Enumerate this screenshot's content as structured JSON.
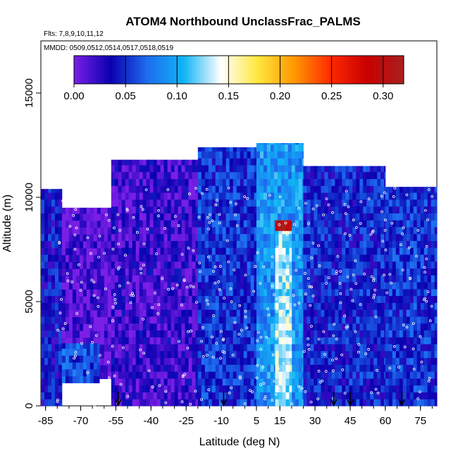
{
  "chart_data": {
    "type": "heatmap",
    "title": "ATOM4 Northbound UnclassFrac_PALMS",
    "flights_text": "Flts: 7,8,9,10,11,12",
    "mmdd_text": "MMDD: 0509,0512,0514,0517,0518,0519",
    "xlabel": "Latitude (deg N)",
    "ylabel": "Altitude (m)",
    "xlim": [
      -87,
      82
    ],
    "ylim": [
      0,
      17500
    ],
    "x_tick_labels": [
      "-85",
      "-70",
      "-55",
      "-40",
      "-25",
      "-10",
      "5",
      "15",
      "30",
      "45",
      "60",
      "75"
    ],
    "x_tick_values": [
      -85,
      -70,
      -55,
      -40,
      -25,
      -10,
      5,
      15,
      30,
      45,
      60,
      75
    ],
    "y_tick_labels": [
      "0",
      "5000",
      "10000",
      "15000"
    ],
    "y_tick_values": [
      0,
      5000,
      10000,
      15000
    ],
    "colorbar": {
      "range": [
        0,
        0.32
      ],
      "tick_labels": [
        "0.00",
        "0.05",
        "0.10",
        "0.15",
        "0.20",
        "0.25",
        "0.30"
      ],
      "tick_values": [
        0,
        0.05,
        0.1,
        0.15,
        0.2,
        0.25,
        0.3
      ],
      "colors": [
        "#7a1fe6",
        "#0a00b0",
        "#1e6cf0",
        "#11b4f5",
        "#ffffff",
        "#ffe840",
        "#ff9900",
        "#ff2a00",
        "#c80000",
        "#a82020"
      ]
    },
    "arrows_latitude": [
      -54,
      -9,
      38,
      45,
      67
    ],
    "regions": [
      {
        "lat": [
          -87,
          -78
        ],
        "alt": [
          0,
          10400
        ],
        "value": 0.04
      },
      {
        "lat": [
          -78,
          -57
        ],
        "alt": [
          1300,
          9500
        ],
        "value": 0.01
      },
      {
        "lat": [
          -78,
          -62
        ],
        "alt": [
          1100,
          3000
        ],
        "value": 0.06
      },
      {
        "lat": [
          -57,
          -20
        ],
        "alt": [
          0,
          11800
        ],
        "value": 0.02
      },
      {
        "lat": [
          -20,
          5
        ],
        "alt": [
          0,
          12400
        ],
        "value": 0.05
      },
      {
        "lat": [
          5,
          25
        ],
        "alt": [
          0,
          12600
        ],
        "value": 0.09
      },
      {
        "lat": [
          13,
          20
        ],
        "alt": [
          0,
          8900
        ],
        "value": 0.13
      },
      {
        "lat": [
          13,
          20
        ],
        "alt": [
          8400,
          8900
        ],
        "value": 0.3
      },
      {
        "lat": [
          25,
          60
        ],
        "alt": [
          0,
          11500
        ],
        "value": 0.045
      },
      {
        "lat": [
          60,
          82
        ],
        "alt": [
          0,
          10500
        ],
        "value": 0.05
      }
    ]
  }
}
